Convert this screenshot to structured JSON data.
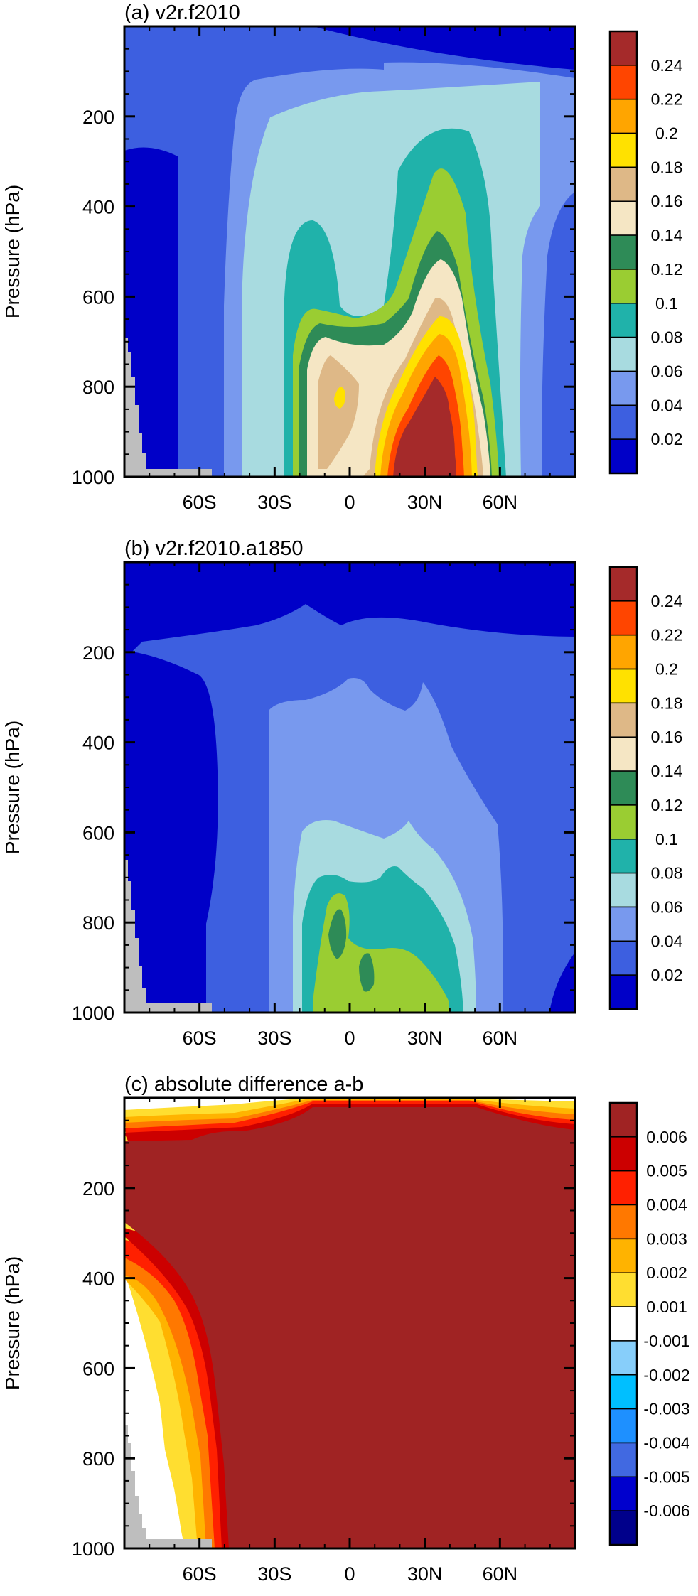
{
  "chart_data": [
    {
      "type": "contour",
      "title": "(a) v2r.f2010",
      "ylabel": "Pressure (hPa)",
      "xlabel": "",
      "xlim": [
        -90,
        90
      ],
      "ylim": [
        1000,
        0
      ],
      "x_ticks": [
        -60,
        -30,
        0,
        30,
        60
      ],
      "x_tick_labels": [
        "60S",
        "30S",
        "0",
        "30N",
        "60N"
      ],
      "y_ticks": [
        200,
        400,
        600,
        800,
        1000
      ],
      "y_tick_labels": [
        "200",
        "400",
        "600",
        "800",
        "1000"
      ],
      "levels": [
        0.02,
        0.04,
        0.06,
        0.08,
        0.1,
        0.12,
        0.14,
        0.16,
        0.18,
        0.2,
        0.22,
        0.24
      ],
      "colorbar_labels": [
        "0.02",
        "0.04",
        "0.06",
        "0.08",
        "0.1",
        "0.12",
        "0.14",
        "0.16",
        "0.18",
        "0.2",
        "0.22",
        "0.24"
      ],
      "colors": [
        "#0000c8",
        "#3d5fe0",
        "#7899ee",
        "#a8dbe0",
        "#20b2aa",
        "#9acd32",
        "#2e8b57",
        "#f5e6c4",
        "#deb887",
        "#ffe100",
        "#ffa500",
        "#ff4500",
        "#a52a2a"
      ],
      "max_location": {
        "lat": 28,
        "pressure": 900,
        "value": 0.25
      },
      "masked_color": "#bebebe"
    },
    {
      "type": "contour",
      "title": "(b) v2r.f2010.a1850",
      "ylabel": "Pressure (hPa)",
      "xlabel": "",
      "xlim": [
        -90,
        90
      ],
      "ylim": [
        1000,
        0
      ],
      "x_ticks": [
        -60,
        -30,
        0,
        30,
        60
      ],
      "x_tick_labels": [
        "60S",
        "30S",
        "0",
        "30N",
        "60N"
      ],
      "y_ticks": [
        200,
        400,
        600,
        800,
        1000
      ],
      "y_tick_labels": [
        "200",
        "400",
        "600",
        "800",
        "1000"
      ],
      "levels": [
        0.02,
        0.04,
        0.06,
        0.08,
        0.1,
        0.12,
        0.14,
        0.16,
        0.18,
        0.2,
        0.22,
        0.24
      ],
      "colorbar_labels": [
        "0.02",
        "0.04",
        "0.06",
        "0.08",
        "0.1",
        "0.12",
        "0.14",
        "0.16",
        "0.18",
        "0.2",
        "0.22",
        "0.24"
      ],
      "colors": [
        "#0000c8",
        "#3d5fe0",
        "#7899ee",
        "#a8dbe0",
        "#20b2aa",
        "#9acd32",
        "#2e8b57",
        "#f5e6c4",
        "#deb887",
        "#ffe100",
        "#ffa500",
        "#ff4500",
        "#a52a2a"
      ],
      "max_location": {
        "lat": 0,
        "pressure": 820,
        "value": 0.13
      },
      "masked_color": "#bebebe"
    },
    {
      "type": "contour",
      "title": "(c) absolute difference a-b",
      "ylabel": "Pressure (hPa)",
      "xlabel": "",
      "xlim": [
        -90,
        90
      ],
      "ylim": [
        1000,
        0
      ],
      "x_ticks": [
        -60,
        -30,
        0,
        30,
        60
      ],
      "x_tick_labels": [
        "60S",
        "30S",
        "0",
        "30N",
        "60N"
      ],
      "y_ticks": [
        200,
        400,
        600,
        800,
        1000
      ],
      "y_tick_labels": [
        "200",
        "400",
        "600",
        "800",
        "1000"
      ],
      "levels": [
        -0.006,
        -0.005,
        -0.004,
        -0.003,
        -0.002,
        -0.001,
        0.001,
        0.002,
        0.003,
        0.004,
        0.005,
        0.006
      ],
      "colorbar_labels": [
        "0.006",
        "0.005",
        "0.004",
        "0.003",
        "0.002",
        "0.001",
        "-0.001",
        "-0.002",
        "-0.003",
        "-0.004",
        "-0.005",
        "-0.006"
      ],
      "colors": [
        "#00008b",
        "#0000cd",
        "#4169e1",
        "#1e90ff",
        "#00bfff",
        "#87cefa",
        "#ffffff",
        "#ffde30",
        "#ffb300",
        "#ff7800",
        "#ff2000",
        "#cc0000",
        "#a02323"
      ],
      "masked_color": "#bebebe"
    }
  ]
}
